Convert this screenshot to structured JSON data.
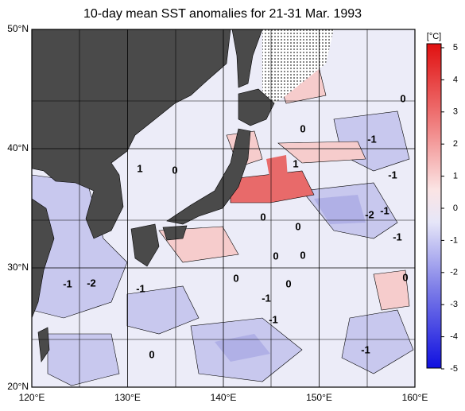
{
  "title": "10-day mean SST anomalies for 21-31 Mar. 1993",
  "map": {
    "xlim": [
      120,
      160
    ],
    "ylim": [
      20,
      50
    ],
    "lon_ticks": [
      {
        "value": 120,
        "label": "120°E"
      },
      {
        "value": 130,
        "label": "130°E"
      },
      {
        "value": 140,
        "label": "140°E"
      },
      {
        "value": 150,
        "label": "150°E"
      },
      {
        "value": 160,
        "label": "160°E"
      }
    ],
    "lat_ticks": [
      {
        "value": 50,
        "label": "50°N"
      },
      {
        "value": 40,
        "label": "40°N"
      },
      {
        "value": 30,
        "label": "30°N"
      },
      {
        "value": 20,
        "label": "20°N"
      }
    ],
    "contour_labels": [
      "0",
      "0",
      "-1",
      "1",
      "0",
      "1",
      "-1",
      "-2",
      "-1",
      "-1",
      "0",
      "0",
      "0",
      "0",
      "0",
      "0",
      "0",
      "-1",
      "-2",
      "-1",
      "-1",
      "-1",
      "0",
      "-1"
    ]
  },
  "colorbar": {
    "unit": "[°C]",
    "lim": [
      -5,
      5
    ],
    "ticks": [
      5,
      4,
      3,
      2,
      1,
      0,
      -1,
      -2,
      -3,
      -4,
      -5
    ]
  }
}
